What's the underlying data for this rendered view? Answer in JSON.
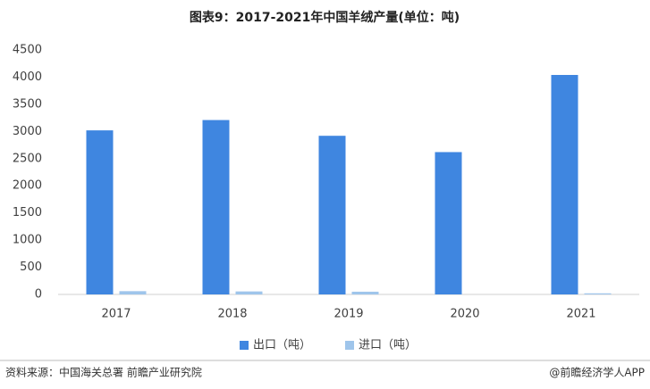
{
  "chart_data": {
    "type": "bar",
    "title": "图表9：2017-2021年中国羊绒产量(单位：吨)",
    "categories": [
      "2017",
      "2018",
      "2019",
      "2020",
      "2021"
    ],
    "series": [
      {
        "name": "出口（吨）",
        "color": "#3f86e0",
        "values": [
          3020,
          3210,
          2920,
          2620,
          4040
        ]
      },
      {
        "name": "进口（吨）",
        "color": "#9fc5eb",
        "values": [
          60,
          55,
          50,
          0,
          20
        ]
      }
    ],
    "ylim": [
      0,
      4500
    ],
    "yticks": [
      0,
      500,
      1000,
      1500,
      2000,
      2500,
      3000,
      3500,
      4000,
      4500
    ],
    "grid": false,
    "legend": "bottom",
    "source": "资料来源：中国海关总署 前瞻产业研究院",
    "credit": "@前瞻经济学人APP"
  }
}
